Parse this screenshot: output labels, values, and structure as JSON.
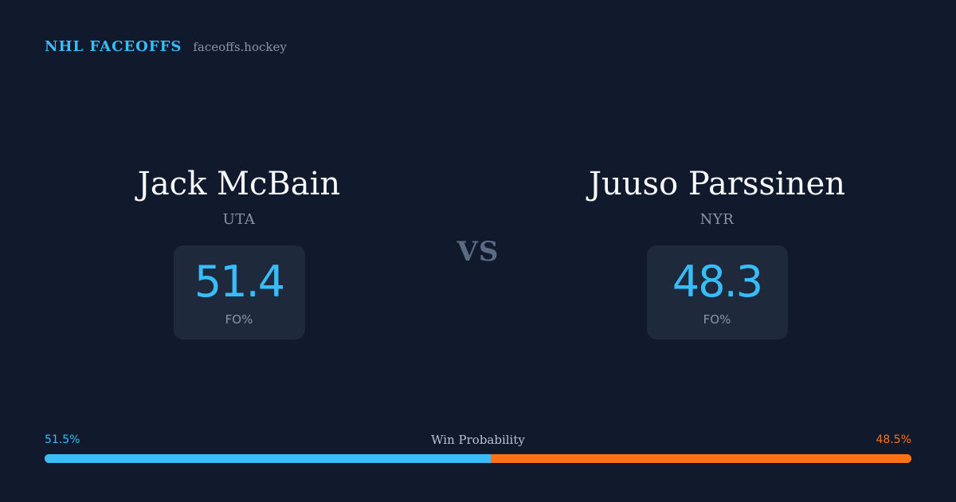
{
  "brand": {
    "name": "NHL FACEOFFS",
    "domain": "faceoffs.hockey"
  },
  "players": {
    "left": {
      "name": "Jack McBain",
      "team": "UTA",
      "stat_value": "51.4",
      "stat_label": "FO%"
    },
    "right": {
      "name": "Juuso Parssinen",
      "team": "NYR",
      "stat_value": "48.3",
      "stat_label": "FO%"
    }
  },
  "vs_label": "VS",
  "win_probability": {
    "title": "Win Probability",
    "left_label": "51.5%",
    "right_label": "48.5%",
    "left_value": 51.5,
    "right_value": 48.5
  },
  "colors": {
    "background": "#111a2c",
    "accent_blue": "#38bdf8",
    "accent_orange": "#f97316",
    "card": "#1e293b",
    "muted_text": "#8a95a8"
  }
}
